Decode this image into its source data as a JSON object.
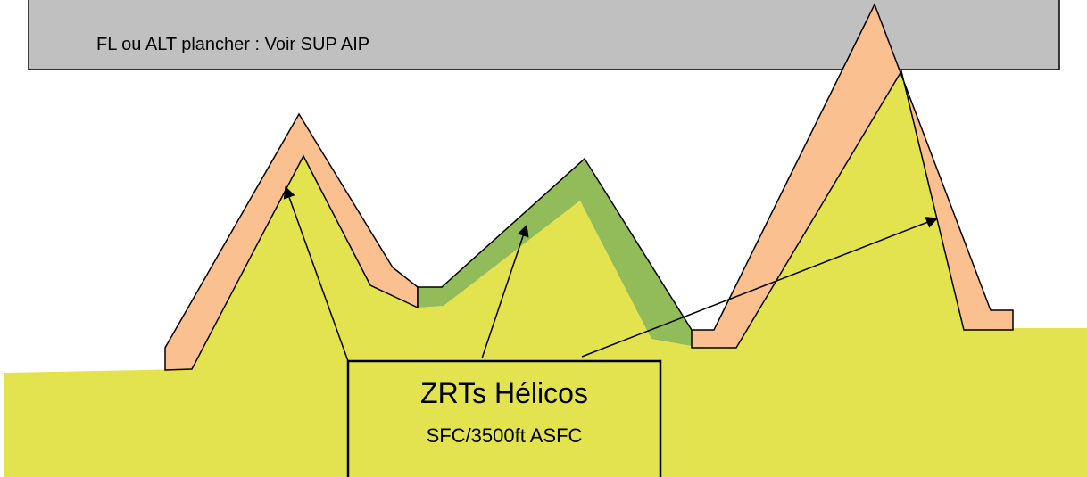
{
  "banner": {
    "text": "FL ou ALT plancher : Voir SUP AIP"
  },
  "label_box": {
    "title": "ZRTs Hélicos",
    "subtitle": "SFC/3500ft ASFC"
  }
}
